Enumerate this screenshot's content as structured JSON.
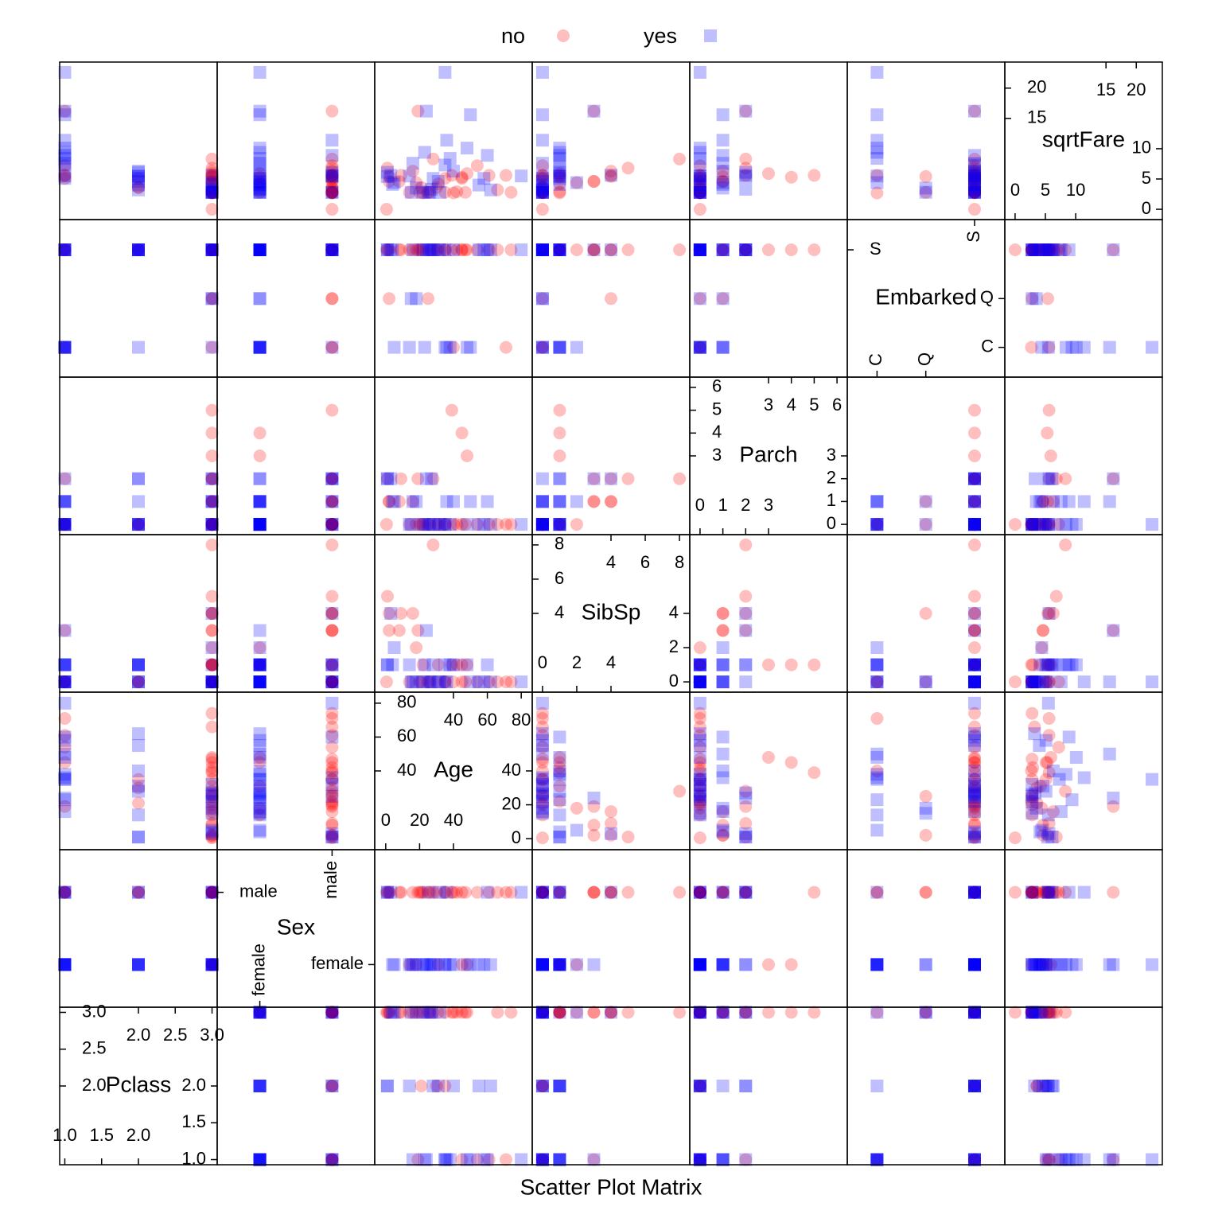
{
  "chart_data": {
    "type": "splom",
    "xlabel": "Scatter Plot Matrix",
    "variables": [
      {
        "name": "Pclass",
        "lim": [
          0.93,
          3.07
        ],
        "ticks": [
          {
            "value": 1,
            "label": "1.0"
          },
          {
            "value": 1.5,
            "label": "1.5"
          },
          {
            "value": 2,
            "label": "2.0"
          },
          {
            "value": 2.5,
            "label": "2.5"
          },
          {
            "value": 3,
            "label": "3.0"
          }
        ]
      },
      {
        "name": "Sex",
        "levels": [
          "female",
          "male"
        ],
        "lim": [
          0.41,
          2.59
        ]
      },
      {
        "name": "Age",
        "lim": [
          -6.5,
          86.5
        ],
        "ticks": [
          0,
          20,
          40,
          60,
          80
        ]
      },
      {
        "name": "SibSp",
        "lim": [
          -0.6,
          8.6
        ],
        "ticks": [
          0,
          2,
          4,
          6,
          8
        ]
      },
      {
        "name": "Parch",
        "lim": [
          -0.45,
          6.45
        ],
        "ticks": [
          0,
          1,
          2,
          3,
          4,
          5,
          6
        ]
      },
      {
        "name": "Embarked",
        "levels": [
          "C",
          "Q",
          "S"
        ],
        "lim": [
          0.39,
          3.62
        ]
      },
      {
        "name": "sqrtFare",
        "lim": [
          -1.7,
          24.3
        ],
        "ticks": [
          0,
          5,
          10,
          15,
          20
        ]
      }
    ],
    "series": [
      {
        "name": "no",
        "color": "#ff0000",
        "marker": "circle",
        "opacity": 0.25,
        "values": {
          "Pclass": [
            3,
            3,
            1,
            3,
            3,
            3,
            2,
            3,
            3,
            3,
            1,
            3,
            3,
            3,
            3,
            3,
            3,
            2,
            1,
            3,
            3,
            3,
            1,
            3,
            2,
            3,
            3,
            3,
            3,
            3,
            1,
            3
          ],
          "Sex": [
            "male",
            "male",
            "male",
            "male",
            "male",
            "male",
            "male",
            "female",
            "male",
            "female",
            "male",
            "male",
            "male",
            "male",
            "female",
            "male",
            "male",
            "male",
            "male",
            "male",
            "female",
            "male",
            "male",
            "male",
            "male",
            "male",
            "male",
            "male",
            "female",
            "male",
            "male",
            "male"
          ],
          "Age": [
            22,
            35,
            54,
            2,
            20,
            39,
            35,
            14,
            2,
            31,
            19,
            40,
            66,
            42,
            18,
            8,
            28,
            21,
            71,
            16,
            45,
            26,
            45,
            1,
            30,
            9,
            47,
            0.5,
            48,
            25,
            61,
            74
          ],
          "SibSp": [
            1,
            0,
            0,
            3,
            0,
            1,
            0,
            0,
            4,
            1,
            3,
            0,
            0,
            1,
            2,
            3,
            8,
            0,
            0,
            4,
            1,
            0,
            0,
            5,
            0,
            4,
            0,
            0,
            1,
            0,
            0,
            0
          ],
          "Parch": [
            0,
            0,
            0,
            1,
            0,
            5,
            0,
            0,
            1,
            0,
            2,
            0,
            0,
            0,
            0,
            1,
            2,
            0,
            0,
            1,
            4,
            0,
            0,
            2,
            0,
            2,
            0,
            0,
            3,
            0,
            0,
            0
          ],
          "Embarked": [
            "S",
            "S",
            "S",
            "S",
            "S",
            "S",
            "S",
            "S",
            "Q",
            "S",
            "S",
            "C",
            "S",
            "S",
            "S",
            "S",
            "S",
            "S",
            "C",
            "S",
            "S",
            "S",
            "S",
            "S",
            "S",
            "S",
            "S",
            "S",
            "S",
            "Q",
            "S",
            "S"
          ],
          "sqrtFare": [
            2.7,
            2.8,
            7.2,
            4.6,
            2.8,
            5.6,
            5.1,
            2.8,
            5.4,
            4.2,
            16.2,
            2.7,
            3.2,
            2.9,
            4.4,
            4.6,
            8.3,
            3.6,
            5.6,
            6.3,
            5.3,
            2.8,
            5.1,
            6.8,
            3.6,
            5.6,
            2.8,
            0,
            5.9,
            2.8,
            5.6,
            2.8
          ]
        }
      },
      {
        "name": "yes",
        "color": "#0000ff",
        "marker": "square",
        "opacity": 0.25,
        "values": {
          "Pclass": [
            1,
            3,
            1,
            3,
            2,
            3,
            1,
            2,
            3,
            1,
            1,
            1,
            2,
            3,
            1,
            2,
            3,
            1,
            2,
            3,
            1,
            2,
            3,
            1,
            2,
            3,
            1,
            3,
            2,
            1
          ],
          "Sex": [
            "female",
            "female",
            "female",
            "female",
            "female",
            "female",
            "female",
            "female",
            "male",
            "female",
            "male",
            "female",
            "male",
            "female",
            "male",
            "female",
            "female",
            "female",
            "female",
            "male",
            "female",
            "male",
            "female",
            "female",
            "female",
            "male",
            "male",
            "female",
            "female",
            "female"
          ],
          "Age": [
            38,
            26,
            35,
            27,
            14,
            4,
            58,
            55,
            25,
            24,
            80,
            35,
            1,
            15,
            36,
            28,
            22,
            48,
            40,
            3,
            23,
            0.9,
            18,
            50,
            31,
            32,
            60,
            5,
            62,
            16
          ],
          "SibSp": [
            1,
            0,
            1,
            0,
            1,
            1,
            0,
            0,
            0,
            3,
            0,
            0,
            1,
            0,
            0,
            1,
            0,
            1,
            1,
            4,
            1,
            1,
            0,
            0,
            0,
            0,
            1,
            2,
            0,
            0
          ],
          "Parch": [
            0,
            0,
            0,
            2,
            0,
            1,
            0,
            0,
            0,
            2,
            0,
            0,
            2,
            0,
            1,
            0,
            0,
            0,
            1,
            2,
            0,
            2,
            1,
            1,
            0,
            0,
            1,
            1,
            0,
            1
          ],
          "Embarked": [
            "C",
            "S",
            "S",
            "S",
            "C",
            "S",
            "S",
            "S",
            "S",
            "S",
            "S",
            "C",
            "S",
            "Q",
            "C",
            "S",
            "S",
            "C",
            "S",
            "S",
            "C",
            "S",
            "Q",
            "C",
            "S",
            "S",
            "S",
            "C",
            "S",
            "S"
          ],
          "sqrtFare": [
            8.4,
            2.8,
            7.3,
            3.3,
            5.5,
            4.1,
            5.1,
            4.0,
            2.8,
            16.2,
            5.5,
            22.6,
            6.1,
            2.8,
            11.4,
            5.1,
            2.8,
            10.1,
            6.3,
            5.6,
            9.4,
            5.4,
            3.5,
            15.6,
            4.6,
            2.8,
            8.9,
            4.4,
            3.2,
            7.6
          ]
        }
      }
    ]
  }
}
